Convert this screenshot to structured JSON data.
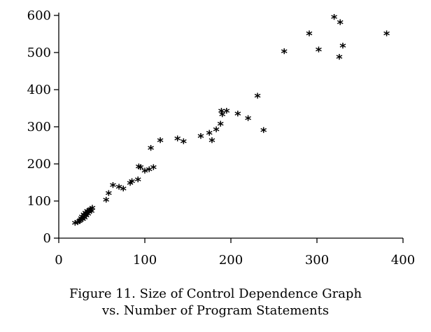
{
  "chart_data": {
    "type": "scatter",
    "title": "",
    "xlabel": "",
    "ylabel": "",
    "xlim": [
      0,
      400
    ],
    "ylim": [
      0,
      600
    ],
    "xticks": [
      0,
      100,
      200,
      300,
      400
    ],
    "yticks": [
      0,
      100,
      200,
      300,
      400,
      500,
      600
    ],
    "grid": false,
    "legend": "none",
    "marker": "*",
    "marker_color": "#000000",
    "series": [
      {
        "points": [
          [
            19,
            38
          ],
          [
            22,
            40
          ],
          [
            24,
            42
          ],
          [
            25,
            45
          ],
          [
            26,
            50
          ],
          [
            27,
            55
          ],
          [
            28,
            48
          ],
          [
            29,
            60
          ],
          [
            30,
            52
          ],
          [
            31,
            65
          ],
          [
            32,
            58
          ],
          [
            33,
            70
          ],
          [
            34,
            62
          ],
          [
            35,
            68
          ],
          [
            36,
            72
          ],
          [
            37,
            75
          ],
          [
            38,
            70
          ],
          [
            39,
            78
          ],
          [
            55,
            100
          ],
          [
            58,
            118
          ],
          [
            63,
            140
          ],
          [
            70,
            135
          ],
          [
            75,
            130
          ],
          [
            83,
            145
          ],
          [
            85,
            150
          ],
          [
            92,
            155
          ],
          [
            93,
            190
          ],
          [
            95,
            188
          ],
          [
            100,
            178
          ],
          [
            105,
            182
          ],
          [
            107,
            240
          ],
          [
            110,
            188
          ],
          [
            118,
            260
          ],
          [
            138,
            265
          ],
          [
            145,
            258
          ],
          [
            165,
            272
          ],
          [
            175,
            280
          ],
          [
            178,
            260
          ],
          [
            183,
            290
          ],
          [
            188,
            305
          ],
          [
            189,
            340
          ],
          [
            190,
            330
          ],
          [
            195,
            340
          ],
          [
            208,
            332
          ],
          [
            220,
            320
          ],
          [
            231,
            380
          ],
          [
            238,
            288
          ],
          [
            262,
            500
          ],
          [
            291,
            548
          ],
          [
            302,
            505
          ],
          [
            320,
            592
          ],
          [
            326,
            485
          ],
          [
            327,
            578
          ],
          [
            330,
            515
          ],
          [
            381,
            548
          ]
        ]
      }
    ]
  },
  "caption": {
    "line1": "Figure 11. Size of Control Dependence Graph",
    "line2": "vs. Number of Program Statements"
  }
}
